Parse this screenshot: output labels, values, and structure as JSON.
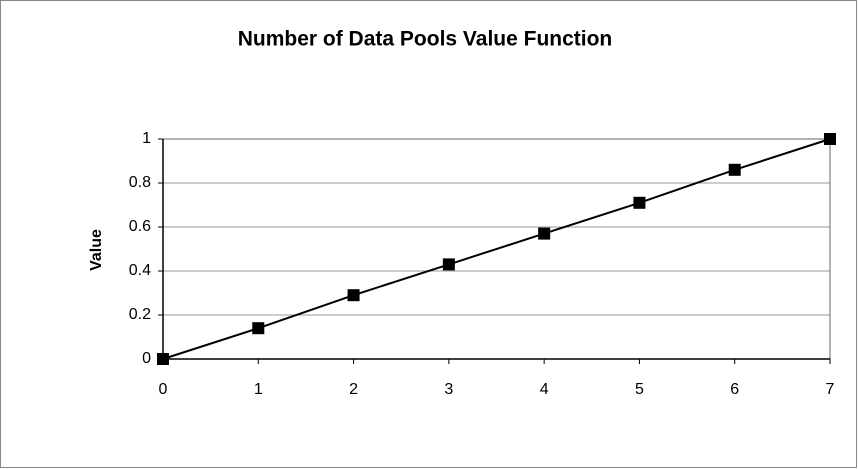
{
  "chart_data": {
    "type": "line",
    "title": "Number of Data Pools Value Function",
    "y_label": "Value",
    "x": [
      0,
      1,
      2,
      3,
      4,
      5,
      6,
      7
    ],
    "series": [
      {
        "name": "Value",
        "color": "#000000",
        "values": [
          0,
          0.14,
          0.29,
          0.43,
          0.57,
          0.71,
          0.86,
          1
        ]
      }
    ],
    "xlim": [
      0,
      7
    ],
    "xticks": [
      0,
      1,
      2,
      3,
      4,
      5,
      6,
      7
    ],
    "ylim": [
      0,
      1
    ],
    "yticks": [
      0,
      0.2,
      0.4,
      0.6,
      0.8,
      1
    ],
    "grid": true
  }
}
